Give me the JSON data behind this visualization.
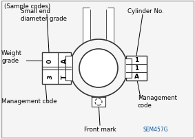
{
  "title": "(Sample codes)",
  "background_color": "#f5f5f5",
  "label_small_end": "Small end\ndiameter grade",
  "label_cylinder": "Cylinder No.",
  "label_weight": "Weight\ngrade",
  "label_mgmt_left": "Management code",
  "label_mgmt_right": "Management\ncode",
  "label_front": "Front mark",
  "sem_code": "SEM457G",
  "sem_color": "#0055aa",
  "line_color": "#333333",
  "fill_color": "#e0e0e0",
  "white": "#ffffff"
}
